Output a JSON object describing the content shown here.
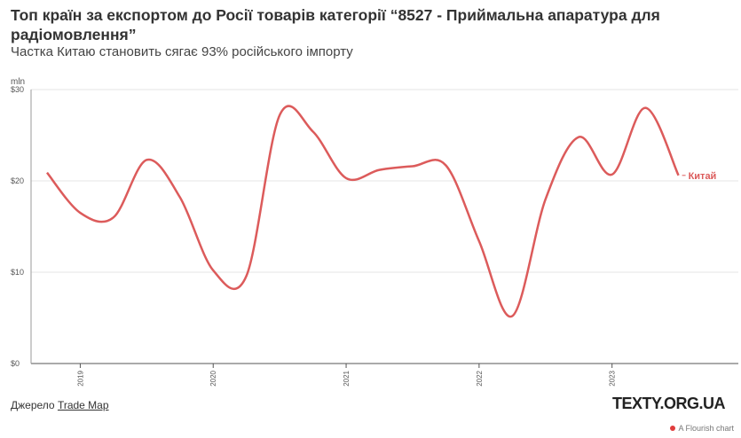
{
  "chart_data": {
    "type": "line",
    "title": "Топ країн за експортом до Росії товарів категорії “8527 - Приймальна апаратура для радіомовлення”",
    "subtitle": "Частка Китаю становить сягає 93% російського імпорту",
    "y_unit_label": "mln",
    "x": [
      2018.75,
      2019,
      2019.25,
      2019.5,
      2019.75,
      2020,
      2020.25,
      2020.5,
      2020.75,
      2021,
      2021.25,
      2021.5,
      2021.75,
      2022,
      2022.25,
      2022.5,
      2022.75,
      2023,
      2023.25,
      2023.5
    ],
    "series": [
      {
        "name": "Китай",
        "color": "#dc5b5b",
        "values": [
          20.9,
          16.5,
          16,
          22.3,
          18.2,
          10.2,
          9.6,
          27.2,
          25.4,
          20.3,
          21.2,
          21.6,
          21.7,
          13.4,
          5.2,
          18,
          24.8,
          20.7,
          28,
          20.6
        ]
      }
    ],
    "xlim": [
      2018.63,
      2023.95
    ],
    "xticks": [
      2019,
      2020,
      2021,
      2022,
      2023
    ],
    "ylim": [
      0,
      30
    ],
    "yticks": [
      {
        "value": 0,
        "label": "$0"
      },
      {
        "value": 10,
        "label": "$10"
      },
      {
        "value": 20,
        "label": "$20"
      },
      {
        "value": 30,
        "label": "$30"
      }
    ],
    "grid": true,
    "source_prefix": "Джерело",
    "source_link": "Trade Map",
    "brand": "TEXTY.ORG.UA",
    "credit": "A Flourish chart"
  }
}
